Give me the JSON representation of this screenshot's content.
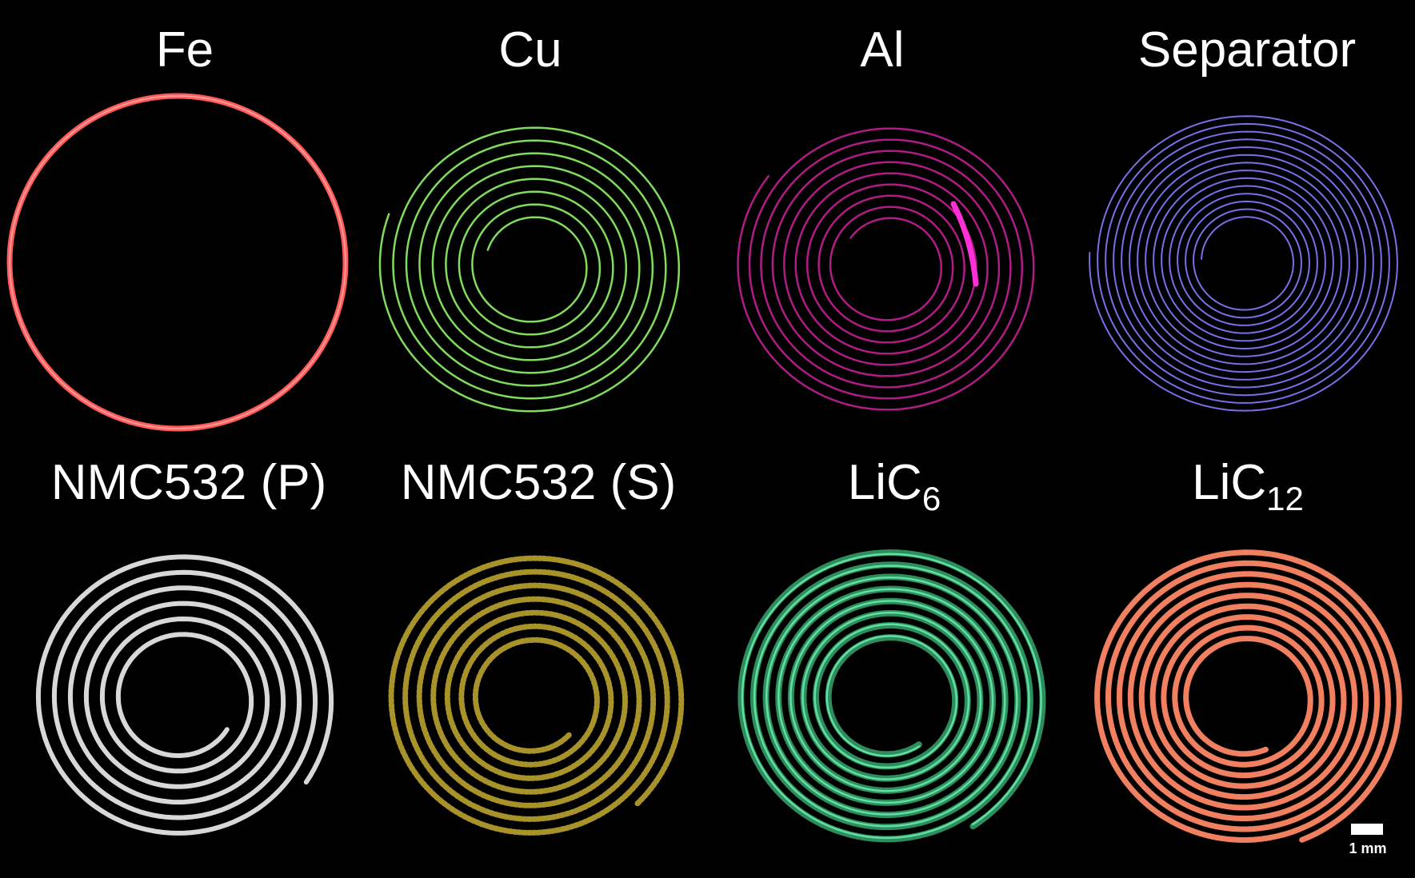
{
  "panels": [
    {
      "label": "Fe"
    },
    {
      "label": "Cu"
    },
    {
      "label": "Al"
    },
    {
      "label": "Separator"
    },
    {
      "label": "NMC532 (P)"
    },
    {
      "label": "NMC532 (S)"
    },
    {
      "label": {
        "base": "LiC",
        "sub": "6"
      }
    },
    {
      "label": {
        "base": "LiC",
        "sub": "12"
      }
    }
  ],
  "scale_bar": {
    "label": "1 mm"
  }
}
